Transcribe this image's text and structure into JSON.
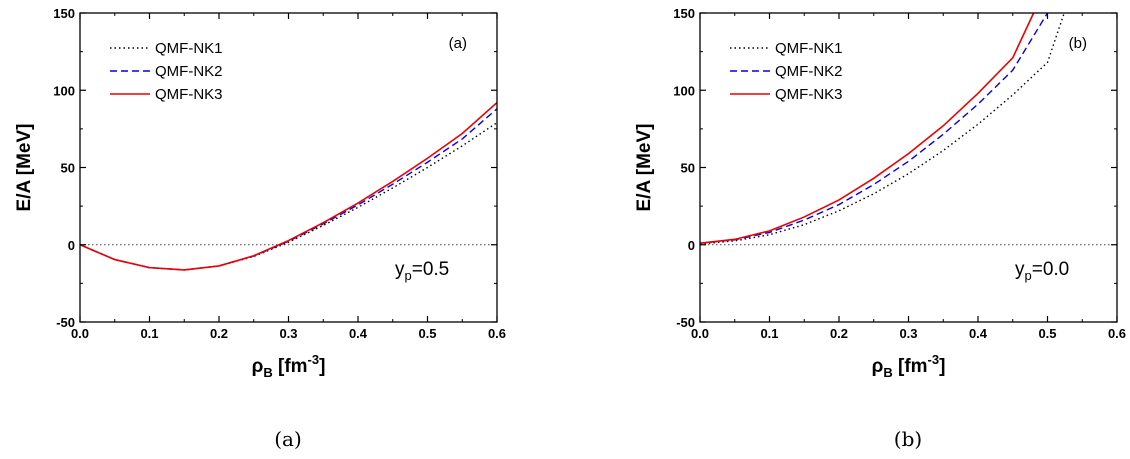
{
  "chart_data": [
    {
      "type": "line",
      "panel_label": "(a)",
      "caption": "(a)",
      "annotation": {
        "base": "y",
        "sub": "p",
        "rest": "=0.5"
      },
      "xlabel": {
        "base": "ρ",
        "sub": "B",
        "unit_pre": " [fm",
        "sup": "-3",
        "unit_post": "]"
      },
      "ylabel": "E/A [MeV]",
      "xlim": [
        0.0,
        0.6
      ],
      "ylim": [
        -50,
        150
      ],
      "xticks": [
        "0.0",
        "0.1",
        "0.2",
        "0.3",
        "0.4",
        "0.5",
        "0.6"
      ],
      "yticks": [
        "-50",
        "0",
        "50",
        "100",
        "150"
      ],
      "legend_position": "top-left",
      "reference_line": {
        "y": 0,
        "style": "dotted"
      },
      "series": [
        {
          "name": "QMF-NK1",
          "color": "#000000",
          "dash": "dotted",
          "points": [
            [
              0.0,
              0
            ],
            [
              0.05,
              -9.6
            ],
            [
              0.1,
              -14.8
            ],
            [
              0.15,
              -16.3
            ],
            [
              0.2,
              -13.7
            ],
            [
              0.25,
              -7.6
            ],
            [
              0.3,
              1.6
            ],
            [
              0.35,
              12.5
            ],
            [
              0.4,
              24.2
            ],
            [
              0.45,
              36.8
            ],
            [
              0.5,
              50.0
            ],
            [
              0.55,
              64.0
            ],
            [
              0.6,
              79.0
            ]
          ]
        },
        {
          "name": "QMF-NK2",
          "color": "#0000ee",
          "dash": "dashed",
          "points": [
            [
              0.0,
              0
            ],
            [
              0.05,
              -9.6
            ],
            [
              0.1,
              -14.8
            ],
            [
              0.15,
              -16.3
            ],
            [
              0.2,
              -13.7
            ],
            [
              0.25,
              -7.3
            ],
            [
              0.3,
              2.2
            ],
            [
              0.35,
              13.5
            ],
            [
              0.4,
              25.8
            ],
            [
              0.45,
              39.2
            ],
            [
              0.5,
              53.4
            ],
            [
              0.55,
              68.5
            ],
            [
              0.6,
              88.0
            ]
          ]
        },
        {
          "name": "QMF-NK3",
          "color": "#ee0000",
          "dash": "solid",
          "points": [
            [
              0.0,
              0
            ],
            [
              0.05,
              -9.6
            ],
            [
              0.1,
              -14.8
            ],
            [
              0.15,
              -16.3
            ],
            [
              0.2,
              -13.7
            ],
            [
              0.25,
              -7.1
            ],
            [
              0.3,
              2.7
            ],
            [
              0.35,
              14.3
            ],
            [
              0.4,
              27.0
            ],
            [
              0.45,
              41.0
            ],
            [
              0.5,
              56.0
            ],
            [
              0.55,
              72.0
            ],
            [
              0.6,
              92.0
            ]
          ]
        }
      ]
    },
    {
      "type": "line",
      "panel_label": "(b)",
      "caption": "(b)",
      "annotation": {
        "base": "y",
        "sub": "p",
        "rest": "=0.0"
      },
      "xlabel": {
        "base": "ρ",
        "sub": "B",
        "unit_pre": " [fm",
        "sup": "-3",
        "unit_post": "]"
      },
      "ylabel": "E/A [MeV]",
      "xlim": [
        0.0,
        0.6
      ],
      "ylim": [
        -50,
        150
      ],
      "xticks": [
        "0.0",
        "0.1",
        "0.2",
        "0.3",
        "0.4",
        "0.5",
        "0.6"
      ],
      "yticks": [
        "-50",
        "0",
        "50",
        "100",
        "150"
      ],
      "legend_position": "top-left",
      "reference_line": {
        "y": 0,
        "style": "dotted"
      },
      "series": [
        {
          "name": "QMF-NK1",
          "color": "#000000",
          "dash": "dotted",
          "points": [
            [
              0.0,
              0.5
            ],
            [
              0.05,
              2.5
            ],
            [
              0.1,
              6.5
            ],
            [
              0.15,
              13.0
            ],
            [
              0.2,
              22.0
            ],
            [
              0.25,
              33.0
            ],
            [
              0.3,
              46.0
            ],
            [
              0.35,
              61.0
            ],
            [
              0.4,
              78.0
            ],
            [
              0.45,
              97.0
            ],
            [
              0.5,
              118.0
            ],
            [
              0.524,
              150.0
            ]
          ]
        },
        {
          "name": "QMF-NK2",
          "color": "#0000ee",
          "dash": "dashed",
          "points": [
            [
              0.0,
              1.0
            ],
            [
              0.05,
              3.2
            ],
            [
              0.1,
              8.0
            ],
            [
              0.15,
              16.0
            ],
            [
              0.2,
              26.0
            ],
            [
              0.25,
              39.0
            ],
            [
              0.3,
              54.0
            ],
            [
              0.35,
              71.5
            ],
            [
              0.4,
              91.0
            ],
            [
              0.45,
              113.0
            ],
            [
              0.5,
              150.0
            ]
          ]
        },
        {
          "name": "QMF-NK3",
          "color": "#ee0000",
          "dash": "solid",
          "points": [
            [
              0.0,
              1.0
            ],
            [
              0.05,
              3.5
            ],
            [
              0.1,
              9.0
            ],
            [
              0.15,
              18.0
            ],
            [
              0.2,
              29.0
            ],
            [
              0.25,
              43.0
            ],
            [
              0.3,
              59.0
            ],
            [
              0.35,
              77.0
            ],
            [
              0.4,
              98.0
            ],
            [
              0.45,
              121.0
            ],
            [
              0.48,
              150.0
            ]
          ]
        }
      ]
    }
  ]
}
